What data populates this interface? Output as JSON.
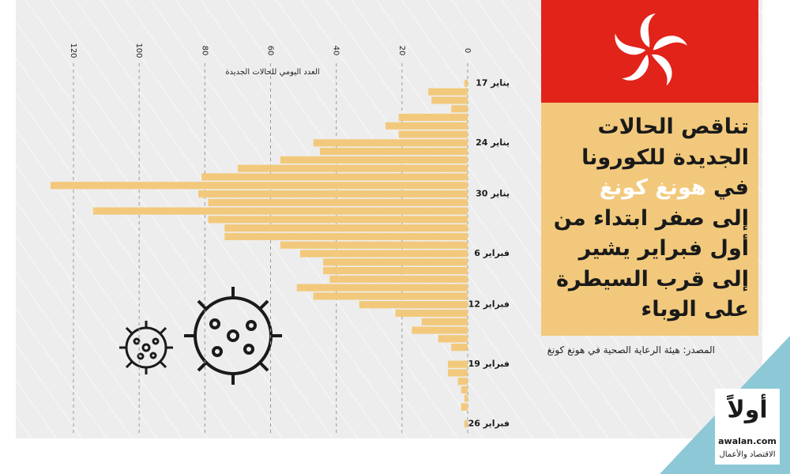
{
  "chart_data": {
    "type": "bar",
    "orientation": "horizontal",
    "title_lines": [
      [
        {
          "text": "تناقص الحالات",
          "color": "#1a1a1a"
        }
      ],
      [
        {
          "text": "الجديدة للكورونا",
          "color": "#1a1a1a"
        }
      ],
      [
        {
          "text": "في ",
          "color": "#1a1a1a"
        },
        {
          "text": "هونغ كونغ",
          "color": "#ffffff"
        }
      ],
      [
        {
          "text": "إلى صفر ابتداء من",
          "color": "#1a1a1a"
        }
      ],
      [
        {
          "text": "أول فبراير يشير",
          "color": "#1a1a1a"
        }
      ],
      [
        {
          "text": "إلى قرب السيطرة",
          "color": "#1a1a1a"
        }
      ],
      [
        {
          "text": "على الوباء",
          "color": "#1a1a1a"
        }
      ]
    ],
    "value_axis_label": "العدد اليومي للحالات الجديدة",
    "source": "المصدر: هيئة الرعاية الصحية في هونغ كونغ",
    "categories": [
      "17 يناير",
      null,
      null,
      null,
      null,
      null,
      null,
      "24 يناير",
      null,
      null,
      null,
      null,
      null,
      "30 يناير",
      null,
      null,
      null,
      null,
      null,
      null,
      "6 فبراير",
      null,
      null,
      null,
      null,
      null,
      "12 فبراير",
      null,
      null,
      null,
      null,
      null,
      null,
      "19 فبراير",
      null,
      null,
      null,
      null,
      null,
      null,
      "26 فبراير"
    ],
    "values": [
      1,
      12,
      11,
      5,
      21,
      25,
      21,
      47,
      45,
      57,
      70,
      81,
      127,
      82,
      79,
      114,
      79,
      74,
      74,
      57,
      51,
      44,
      44,
      42,
      52,
      47,
      33,
      22,
      14,
      17,
      9,
      5,
      0,
      6,
      6,
      3,
      2,
      1,
      2,
      0,
      1
    ],
    "color": "#f2c97c",
    "xlim": [
      0,
      120
    ],
    "xticks": [
      0,
      20,
      40,
      60,
      80,
      100,
      120
    ],
    "grid": true,
    "logo": {
      "mark": "أولاً",
      "site": "awalan.com",
      "tagline": "الاقتصاد والأعمال"
    }
  }
}
